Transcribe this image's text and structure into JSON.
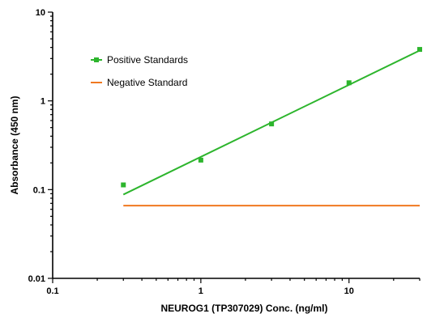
{
  "chart_data": {
    "type": "scatter",
    "xlabel": "NEUROG1 (TP307029) Conc. (ng/ml)",
    "ylabel": "Absorbance (450 nm)",
    "x_scale": "log",
    "y_scale": "log",
    "xlim": [
      0.1,
      30
    ],
    "ylim": [
      0.01,
      10
    ],
    "x_ticks": [
      {
        "value": 0.1,
        "label": "0.1"
      },
      {
        "value": 1,
        "label": "1"
      },
      {
        "value": 10,
        "label": "10"
      }
    ],
    "y_ticks": [
      {
        "value": 0.01,
        "label": "0.01"
      },
      {
        "value": 0.1,
        "label": "0.1"
      },
      {
        "value": 1,
        "label": "1"
      },
      {
        "value": 10,
        "label": "10"
      }
    ],
    "grid": false,
    "legend_position": "top-left",
    "series": [
      {
        "name": "Positive Standards",
        "color": "#2db52d",
        "marker": "square",
        "points": [
          {
            "x": 0.3,
            "y": 0.113
          },
          {
            "x": 1,
            "y": 0.215
          },
          {
            "x": 3,
            "y": 0.55
          },
          {
            "x": 10,
            "y": 1.6
          },
          {
            "x": 30,
            "y": 3.8
          }
        ],
        "fit_line": [
          {
            "x": 0.3,
            "y": 0.088
          },
          {
            "x": 30,
            "y": 3.7
          }
        ]
      },
      {
        "name": "Negative Standard",
        "color": "#f07820",
        "marker": "none",
        "fit_line": [
          {
            "x": 0.3,
            "y": 0.066
          },
          {
            "x": 30,
            "y": 0.066
          }
        ]
      }
    ]
  }
}
